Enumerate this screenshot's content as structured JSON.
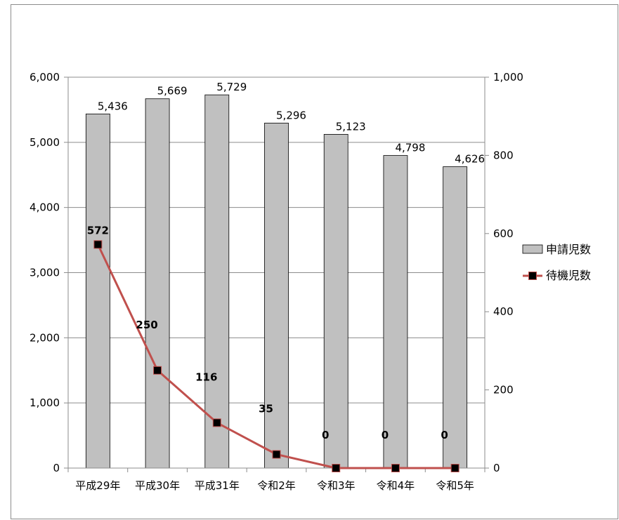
{
  "chart_data": {
    "type": "bar",
    "categories": [
      "平成29年",
      "平成30年",
      "平成31年",
      "令和2年",
      "令和3年",
      "令和4年",
      "令和5年"
    ],
    "series": [
      {
        "name": "申請児数",
        "type": "bar",
        "axis": "left",
        "values": [
          5436,
          5669,
          5729,
          5296,
          5123,
          4798,
          4626
        ],
        "labels": [
          "5,436",
          "5,669",
          "5,729",
          "5,296",
          "5,123",
          "4,798",
          "4,626"
        ],
        "color": "#c0c0c0"
      },
      {
        "name": "待機児数",
        "type": "line",
        "axis": "right",
        "values": [
          572,
          250,
          116,
          35,
          0,
          0,
          0
        ],
        "labels": [
          "572",
          "250",
          "116",
          "35",
          "0",
          "0",
          "0"
        ],
        "color": "#c0504d",
        "marker_color": "#000000"
      }
    ],
    "y_left": {
      "ylim": [
        0,
        6000
      ],
      "ticks": [
        0,
        1000,
        2000,
        3000,
        4000,
        5000,
        6000
      ],
      "tick_labels": [
        "0",
        "1,000",
        "2,000",
        "3,000",
        "4,000",
        "5,000",
        "6,000"
      ]
    },
    "y_right": {
      "ylim": [
        0,
        1000
      ],
      "ticks": [
        0,
        200,
        400,
        600,
        800,
        1000
      ],
      "tick_labels": [
        "0",
        "200",
        "400",
        "600",
        "800",
        "1,000"
      ]
    },
    "grid": true,
    "legend_position": "right",
    "title": "",
    "xlabel": "",
    "ylabel": ""
  }
}
